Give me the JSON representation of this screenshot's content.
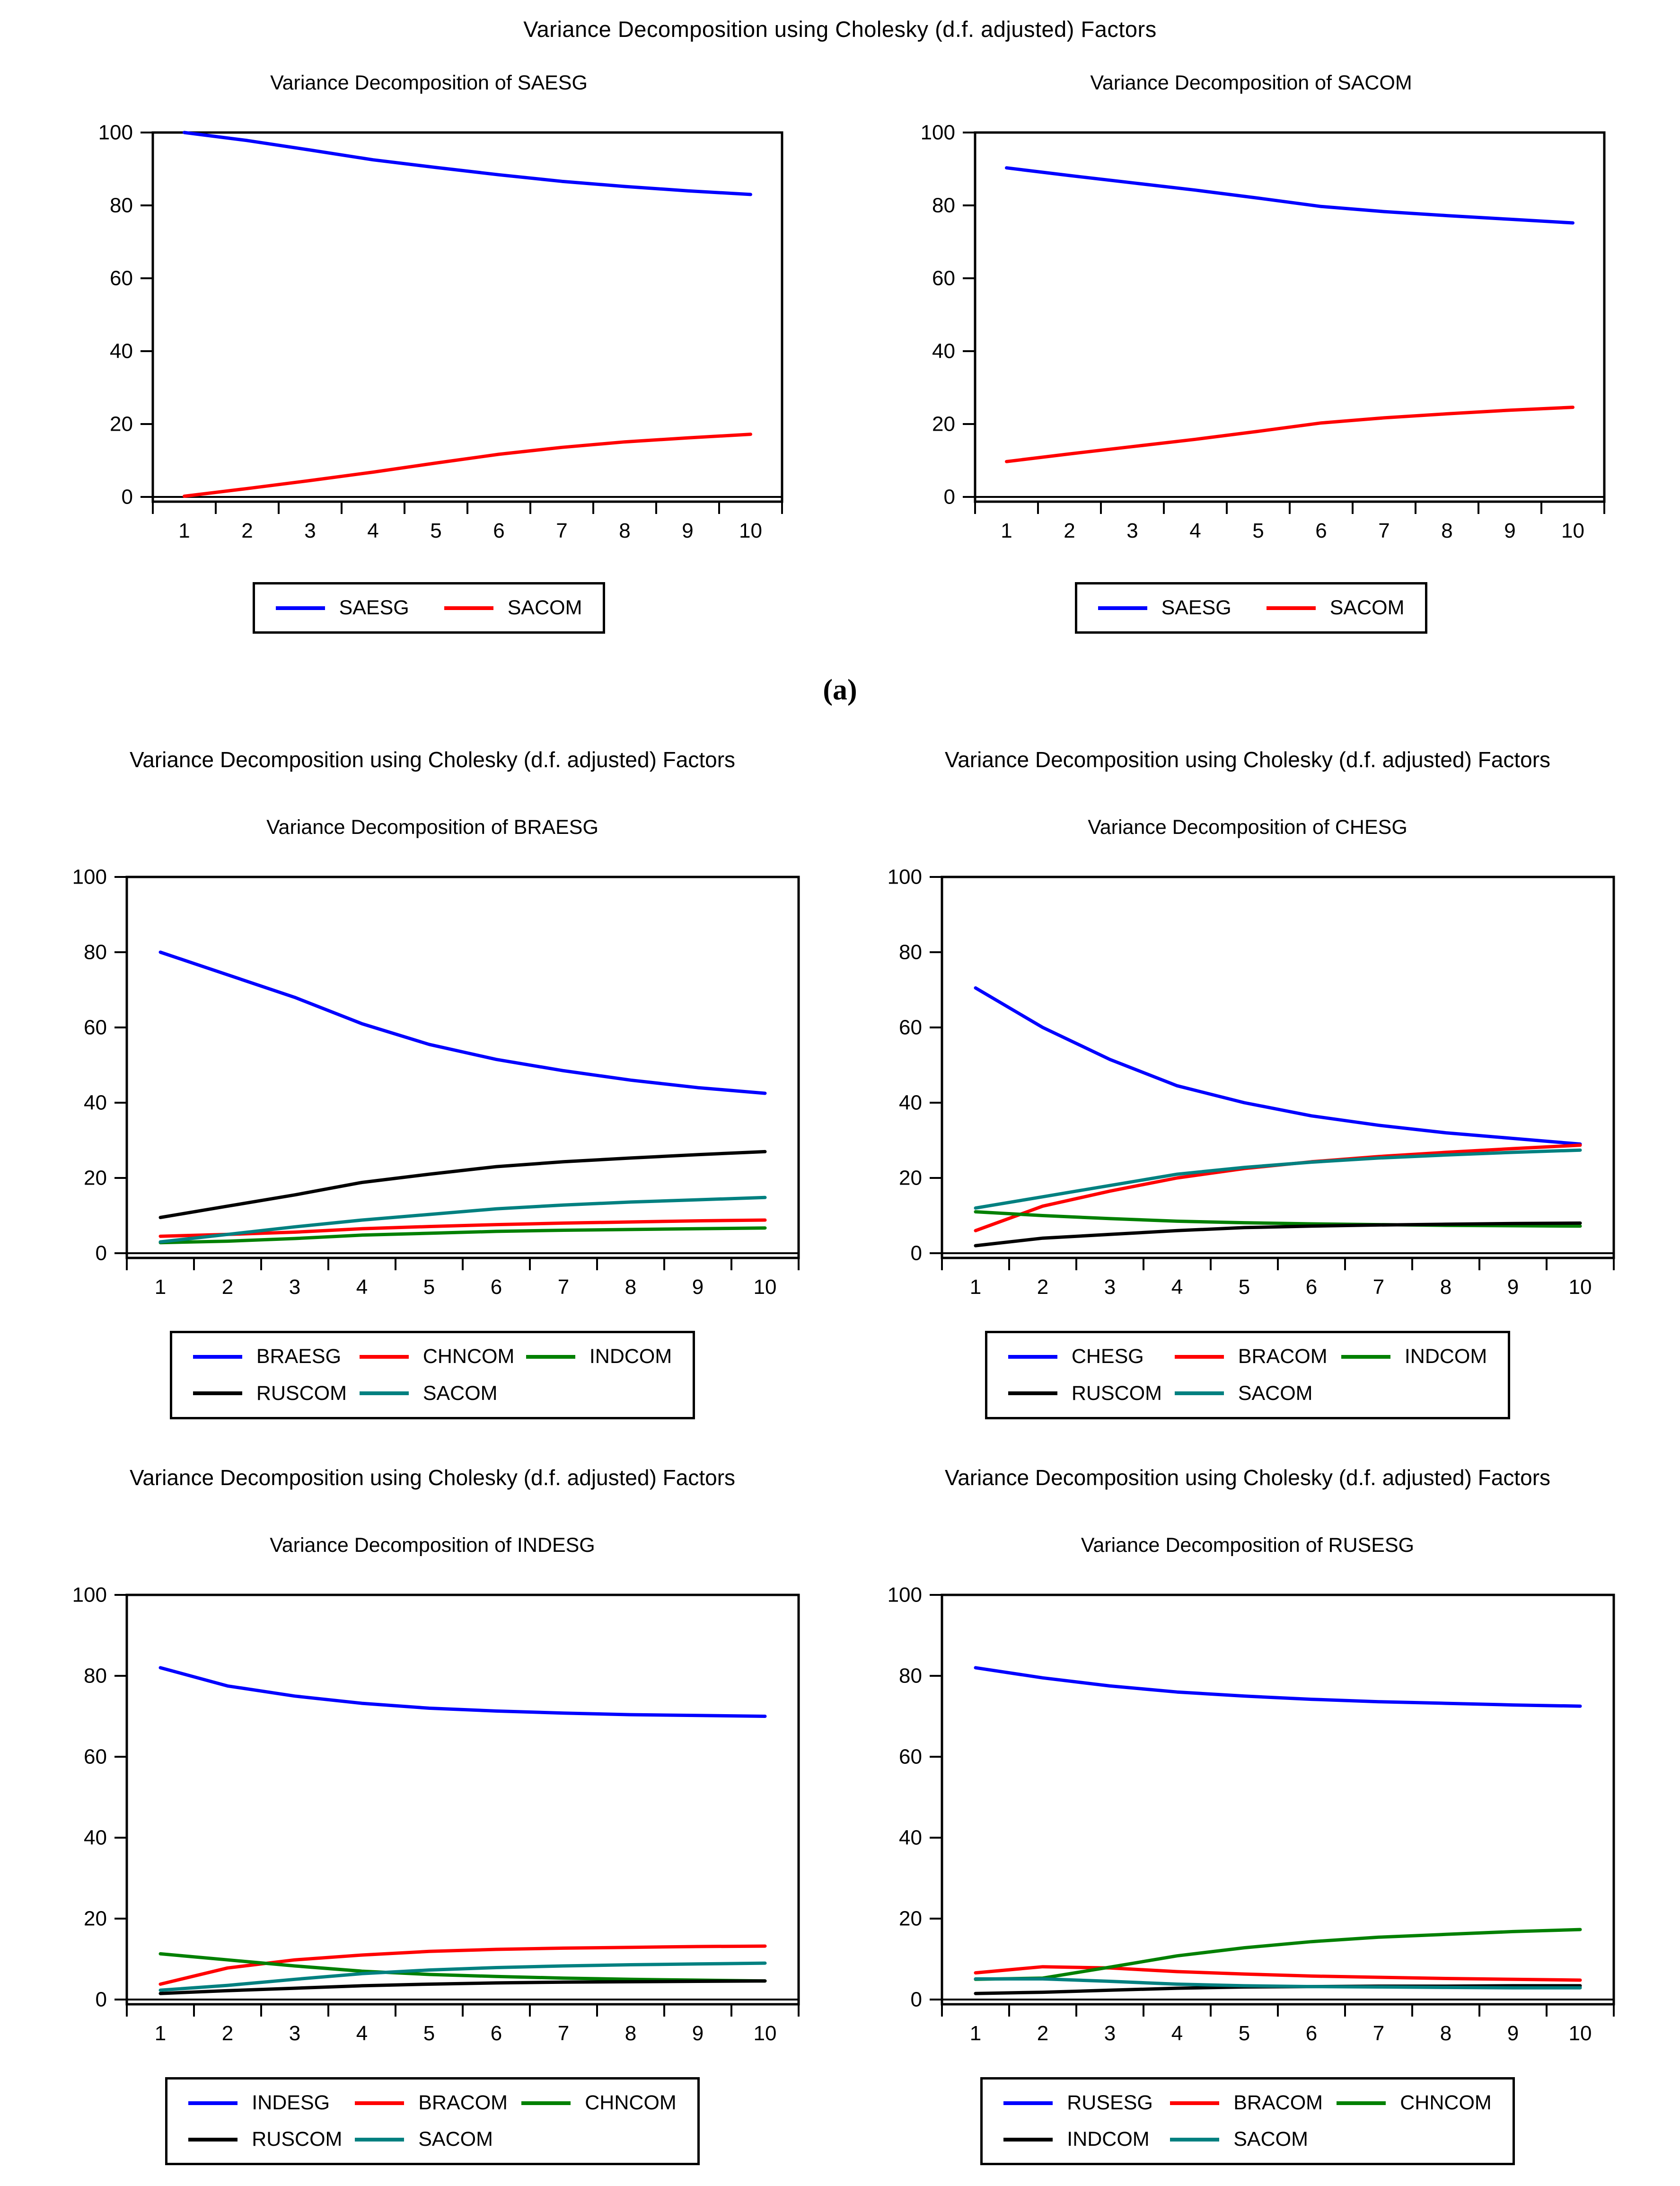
{
  "section_a": {
    "title": "Variance Decomposition using Cholesky (d.f. adjusted) Factors",
    "caption": "(a)"
  },
  "colors": {
    "blue": "#0000FF",
    "red": "#FF0000",
    "green": "#008000",
    "black": "#000000",
    "teal": "#008080",
    "frame": "#000000",
    "background": "#FFFFFF"
  },
  "chart_data": [
    {
      "type": "line",
      "subtitle": "Variance Decomposition of SAESG",
      "x": [
        1,
        2,
        3,
        4,
        5,
        6,
        7,
        8,
        9,
        10
      ],
      "xlabel": "",
      "ylabel": "",
      "ylim": [
        0,
        100
      ],
      "yticks": [
        0,
        20,
        40,
        60,
        80,
        100
      ],
      "grid": false,
      "legend_position": "below",
      "series": [
        {
          "name": "SAESG",
          "color": "#0000FF",
          "values": [
            100,
            97.8,
            95.2,
            92.5,
            90.4,
            88.4,
            86.6,
            85.2,
            84,
            83
          ]
        },
        {
          "name": "SACOM",
          "color": "#FF0000",
          "values": [
            0.2,
            2.3,
            4.5,
            6.8,
            9.3,
            11.7,
            13.6,
            15.1,
            16.2,
            17.2
          ]
        }
      ]
    },
    {
      "type": "line",
      "subtitle": "Variance Decomposition of SACOM",
      "x": [
        1,
        2,
        3,
        4,
        5,
        6,
        7,
        8,
        9,
        10
      ],
      "xlabel": "",
      "ylabel": "",
      "ylim": [
        0,
        100
      ],
      "yticks": [
        0,
        20,
        40,
        60,
        80,
        100
      ],
      "grid": false,
      "legend_position": "below",
      "series": [
        {
          "name": "SAESG",
          "color": "#0000FF",
          "values": [
            90.3,
            88.2,
            86.2,
            84.2,
            82,
            79.7,
            78.3,
            77.2,
            76.2,
            75.2
          ]
        },
        {
          "name": "SACOM",
          "color": "#FF0000",
          "values": [
            9.7,
            11.8,
            13.8,
            15.8,
            18,
            20.3,
            21.7,
            22.8,
            23.8,
            24.6
          ]
        }
      ]
    },
    {
      "type": "line",
      "header": "Variance Decomposition using Cholesky (d.f. adjusted) Factors",
      "subtitle": "Variance Decomposition of BRAESG",
      "x": [
        1,
        2,
        3,
        4,
        5,
        6,
        7,
        8,
        9,
        10
      ],
      "xlabel": "",
      "ylabel": "",
      "ylim": [
        0,
        100
      ],
      "yticks": [
        0,
        20,
        40,
        60,
        80,
        100
      ],
      "grid": false,
      "legend_position": "below",
      "series": [
        {
          "name": "BRAESG",
          "color": "#0000FF",
          "values": [
            80,
            74,
            68,
            61,
            55.5,
            51.5,
            48.5,
            46,
            44,
            42.5
          ]
        },
        {
          "name": "CHNCOM",
          "color": "#FF0000",
          "values": [
            4.5,
            5,
            5.6,
            6.5,
            7.1,
            7.6,
            8,
            8.3,
            8.6,
            8.8
          ]
        },
        {
          "name": "INDCOM",
          "color": "#008000",
          "values": [
            2.8,
            3.2,
            3.9,
            4.8,
            5.3,
            5.8,
            6.1,
            6.3,
            6.5,
            6.7
          ]
        },
        {
          "name": "RUSCOM",
          "color": "#000000",
          "values": [
            9.5,
            12.5,
            15.5,
            18.8,
            21,
            23,
            24.3,
            25.3,
            26.2,
            27
          ]
        },
        {
          "name": "SACOM",
          "color": "#008080",
          "values": [
            3,
            5,
            7,
            8.8,
            10.3,
            11.8,
            12.8,
            13.6,
            14.2,
            14.8
          ]
        }
      ]
    },
    {
      "type": "line",
      "header": "Variance Decomposition using Cholesky (d.f. adjusted) Factors",
      "subtitle": "Variance Decomposition of CHESG",
      "x": [
        1,
        2,
        3,
        4,
        5,
        6,
        7,
        8,
        9,
        10
      ],
      "xlabel": "",
      "ylabel": "",
      "ylim": [
        0,
        100
      ],
      "yticks": [
        0,
        20,
        40,
        60,
        80,
        100
      ],
      "grid": false,
      "legend_position": "below",
      "series": [
        {
          "name": "CHESG",
          "color": "#0000FF",
          "values": [
            70.5,
            60,
            51.5,
            44.5,
            40,
            36.5,
            34,
            32,
            30.5,
            29
          ]
        },
        {
          "name": "BRACOM",
          "color": "#FF0000",
          "values": [
            6,
            12.5,
            16.5,
            20,
            22.5,
            24.3,
            25.7,
            26.8,
            27.8,
            28.7
          ]
        },
        {
          "name": "INDCOM",
          "color": "#008000",
          "values": [
            11,
            10,
            9.2,
            8.5,
            8.1,
            7.8,
            7.6,
            7.4,
            7.3,
            7.2
          ]
        },
        {
          "name": "RUSCOM",
          "color": "#000000",
          "values": [
            2,
            4,
            5,
            6,
            6.8,
            7.2,
            7.5,
            7.7,
            7.9,
            8
          ]
        },
        {
          "name": "SACOM",
          "color": "#008080",
          "values": [
            12,
            15,
            18,
            21,
            22.8,
            24.2,
            25.3,
            26.1,
            26.8,
            27.4
          ]
        }
      ]
    },
    {
      "type": "line",
      "header": "Variance Decomposition using Cholesky (d.f. adjusted) Factors",
      "subtitle": "Variance Decomposition of INDESG",
      "x": [
        1,
        2,
        3,
        4,
        5,
        6,
        7,
        8,
        9,
        10
      ],
      "xlabel": "",
      "ylabel": "",
      "ylim": [
        0,
        100
      ],
      "yticks": [
        0,
        20,
        40,
        60,
        80,
        100
      ],
      "grid": false,
      "legend_position": "below",
      "series": [
        {
          "name": "INDESG",
          "color": "#0000FF",
          "values": [
            82,
            77.5,
            75,
            73.2,
            72,
            71.3,
            70.8,
            70.4,
            70.2,
            70
          ]
        },
        {
          "name": "BRACOM",
          "color": "#FF0000",
          "values": [
            3.8,
            7.8,
            9.8,
            11,
            11.9,
            12.4,
            12.7,
            12.9,
            13.1,
            13.2
          ]
        },
        {
          "name": "CHNCOM",
          "color": "#008000",
          "values": [
            11.3,
            9.8,
            8.3,
            7,
            6.2,
            5.7,
            5.3,
            5,
            4.8,
            4.6
          ]
        },
        {
          "name": "RUSCOM",
          "color": "#000000",
          "values": [
            1.5,
            2.2,
            2.8,
            3.4,
            3.8,
            4.1,
            4.3,
            4.4,
            4.5,
            4.6
          ]
        },
        {
          "name": "SACOM",
          "color": "#008080",
          "values": [
            2.3,
            3.5,
            5,
            6.4,
            7.3,
            7.9,
            8.3,
            8.6,
            8.8,
            9
          ]
        }
      ]
    },
    {
      "type": "line",
      "header": "Variance Decomposition using Cholesky (d.f. adjusted) Factors",
      "subtitle": "Variance Decomposition of RUSESG",
      "x": [
        1,
        2,
        3,
        4,
        5,
        6,
        7,
        8,
        9,
        10
      ],
      "xlabel": "",
      "ylabel": "",
      "ylim": [
        0,
        100
      ],
      "yticks": [
        0,
        20,
        40,
        60,
        80,
        100
      ],
      "grid": false,
      "legend_position": "below",
      "series": [
        {
          "name": "RUSESG",
          "color": "#0000FF",
          "values": [
            82,
            79.5,
            77.5,
            76,
            75,
            74.2,
            73.6,
            73.2,
            72.8,
            72.5
          ]
        },
        {
          "name": "BRACOM",
          "color": "#FF0000",
          "values": [
            6.6,
            8.1,
            7.8,
            6.9,
            6.3,
            5.8,
            5.5,
            5.2,
            5,
            4.8
          ]
        },
        {
          "name": "CHNCOM",
          "color": "#008000",
          "values": [
            5,
            5.3,
            8,
            10.8,
            12.8,
            14.3,
            15.4,
            16.1,
            16.8,
            17.3
          ]
        },
        {
          "name": "INDCOM",
          "color": "#000000",
          "values": [
            1.5,
            1.8,
            2.3,
            2.8,
            3.1,
            3.2,
            3.3,
            3.3,
            3.4,
            3.4
          ]
        },
        {
          "name": "SACOM",
          "color": "#008080",
          "values": [
            5.1,
            5.1,
            4.5,
            3.8,
            3.4,
            3.2,
            3.1,
            3,
            2.9,
            2.9
          ]
        }
      ]
    }
  ]
}
